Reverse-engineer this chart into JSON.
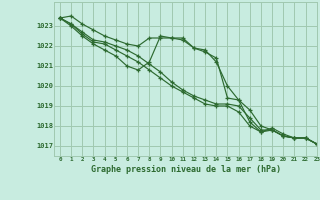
{
  "background_color": "#c8ece0",
  "grid_color": "#a0c8b0",
  "line_color": "#2d6a30",
  "title": "Graphe pression niveau de la mer (hPa)",
  "xlim": [
    -0.5,
    23
  ],
  "ylim": [
    1016.5,
    1024.2
  ],
  "yticks": [
    1017,
    1018,
    1019,
    1020,
    1021,
    1022,
    1023
  ],
  "xticks": [
    0,
    1,
    2,
    3,
    4,
    5,
    6,
    7,
    8,
    9,
    10,
    11,
    12,
    13,
    14,
    15,
    16,
    17,
    18,
    19,
    20,
    21,
    22,
    23
  ],
  "series": [
    [
      1023.4,
      1023.5,
      1023.1,
      1022.8,
      1022.5,
      1022.3,
      1022.1,
      1022.0,
      1022.4,
      1022.4,
      1022.4,
      1022.4,
      1021.9,
      1021.7,
      1021.4,
      1019.4,
      1019.3,
      1018.8,
      1018.0,
      1017.8,
      1017.5,
      1017.4,
      1017.4,
      1017.1
    ],
    [
      1023.4,
      1023.1,
      1022.7,
      1022.3,
      1022.2,
      1022.0,
      1021.8,
      1021.5,
      1021.1,
      1020.7,
      1020.2,
      1019.8,
      1019.5,
      1019.3,
      1019.1,
      1019.1,
      1019.0,
      1018.4,
      1017.8,
      1017.8,
      1017.5,
      1017.4,
      1017.4,
      1017.1
    ],
    [
      1023.4,
      1023.1,
      1022.6,
      1022.2,
      1022.1,
      1021.8,
      1021.5,
      1021.2,
      1020.8,
      1020.4,
      1020.0,
      1019.7,
      1019.4,
      1019.1,
      1019.0,
      1019.0,
      1018.7,
      1018.0,
      1017.7,
      1017.8,
      1017.5,
      1017.4,
      1017.4,
      1017.1
    ],
    [
      1023.4,
      1023.0,
      1022.5,
      1022.1,
      1021.8,
      1021.5,
      1021.0,
      1020.8,
      1021.2,
      1022.5,
      1022.4,
      1022.3,
      1021.9,
      1021.8,
      1021.2,
      1020.0,
      1019.3,
      1018.2,
      1017.7,
      1017.9,
      1017.6,
      1017.4,
      1017.4,
      1017.1
    ]
  ]
}
